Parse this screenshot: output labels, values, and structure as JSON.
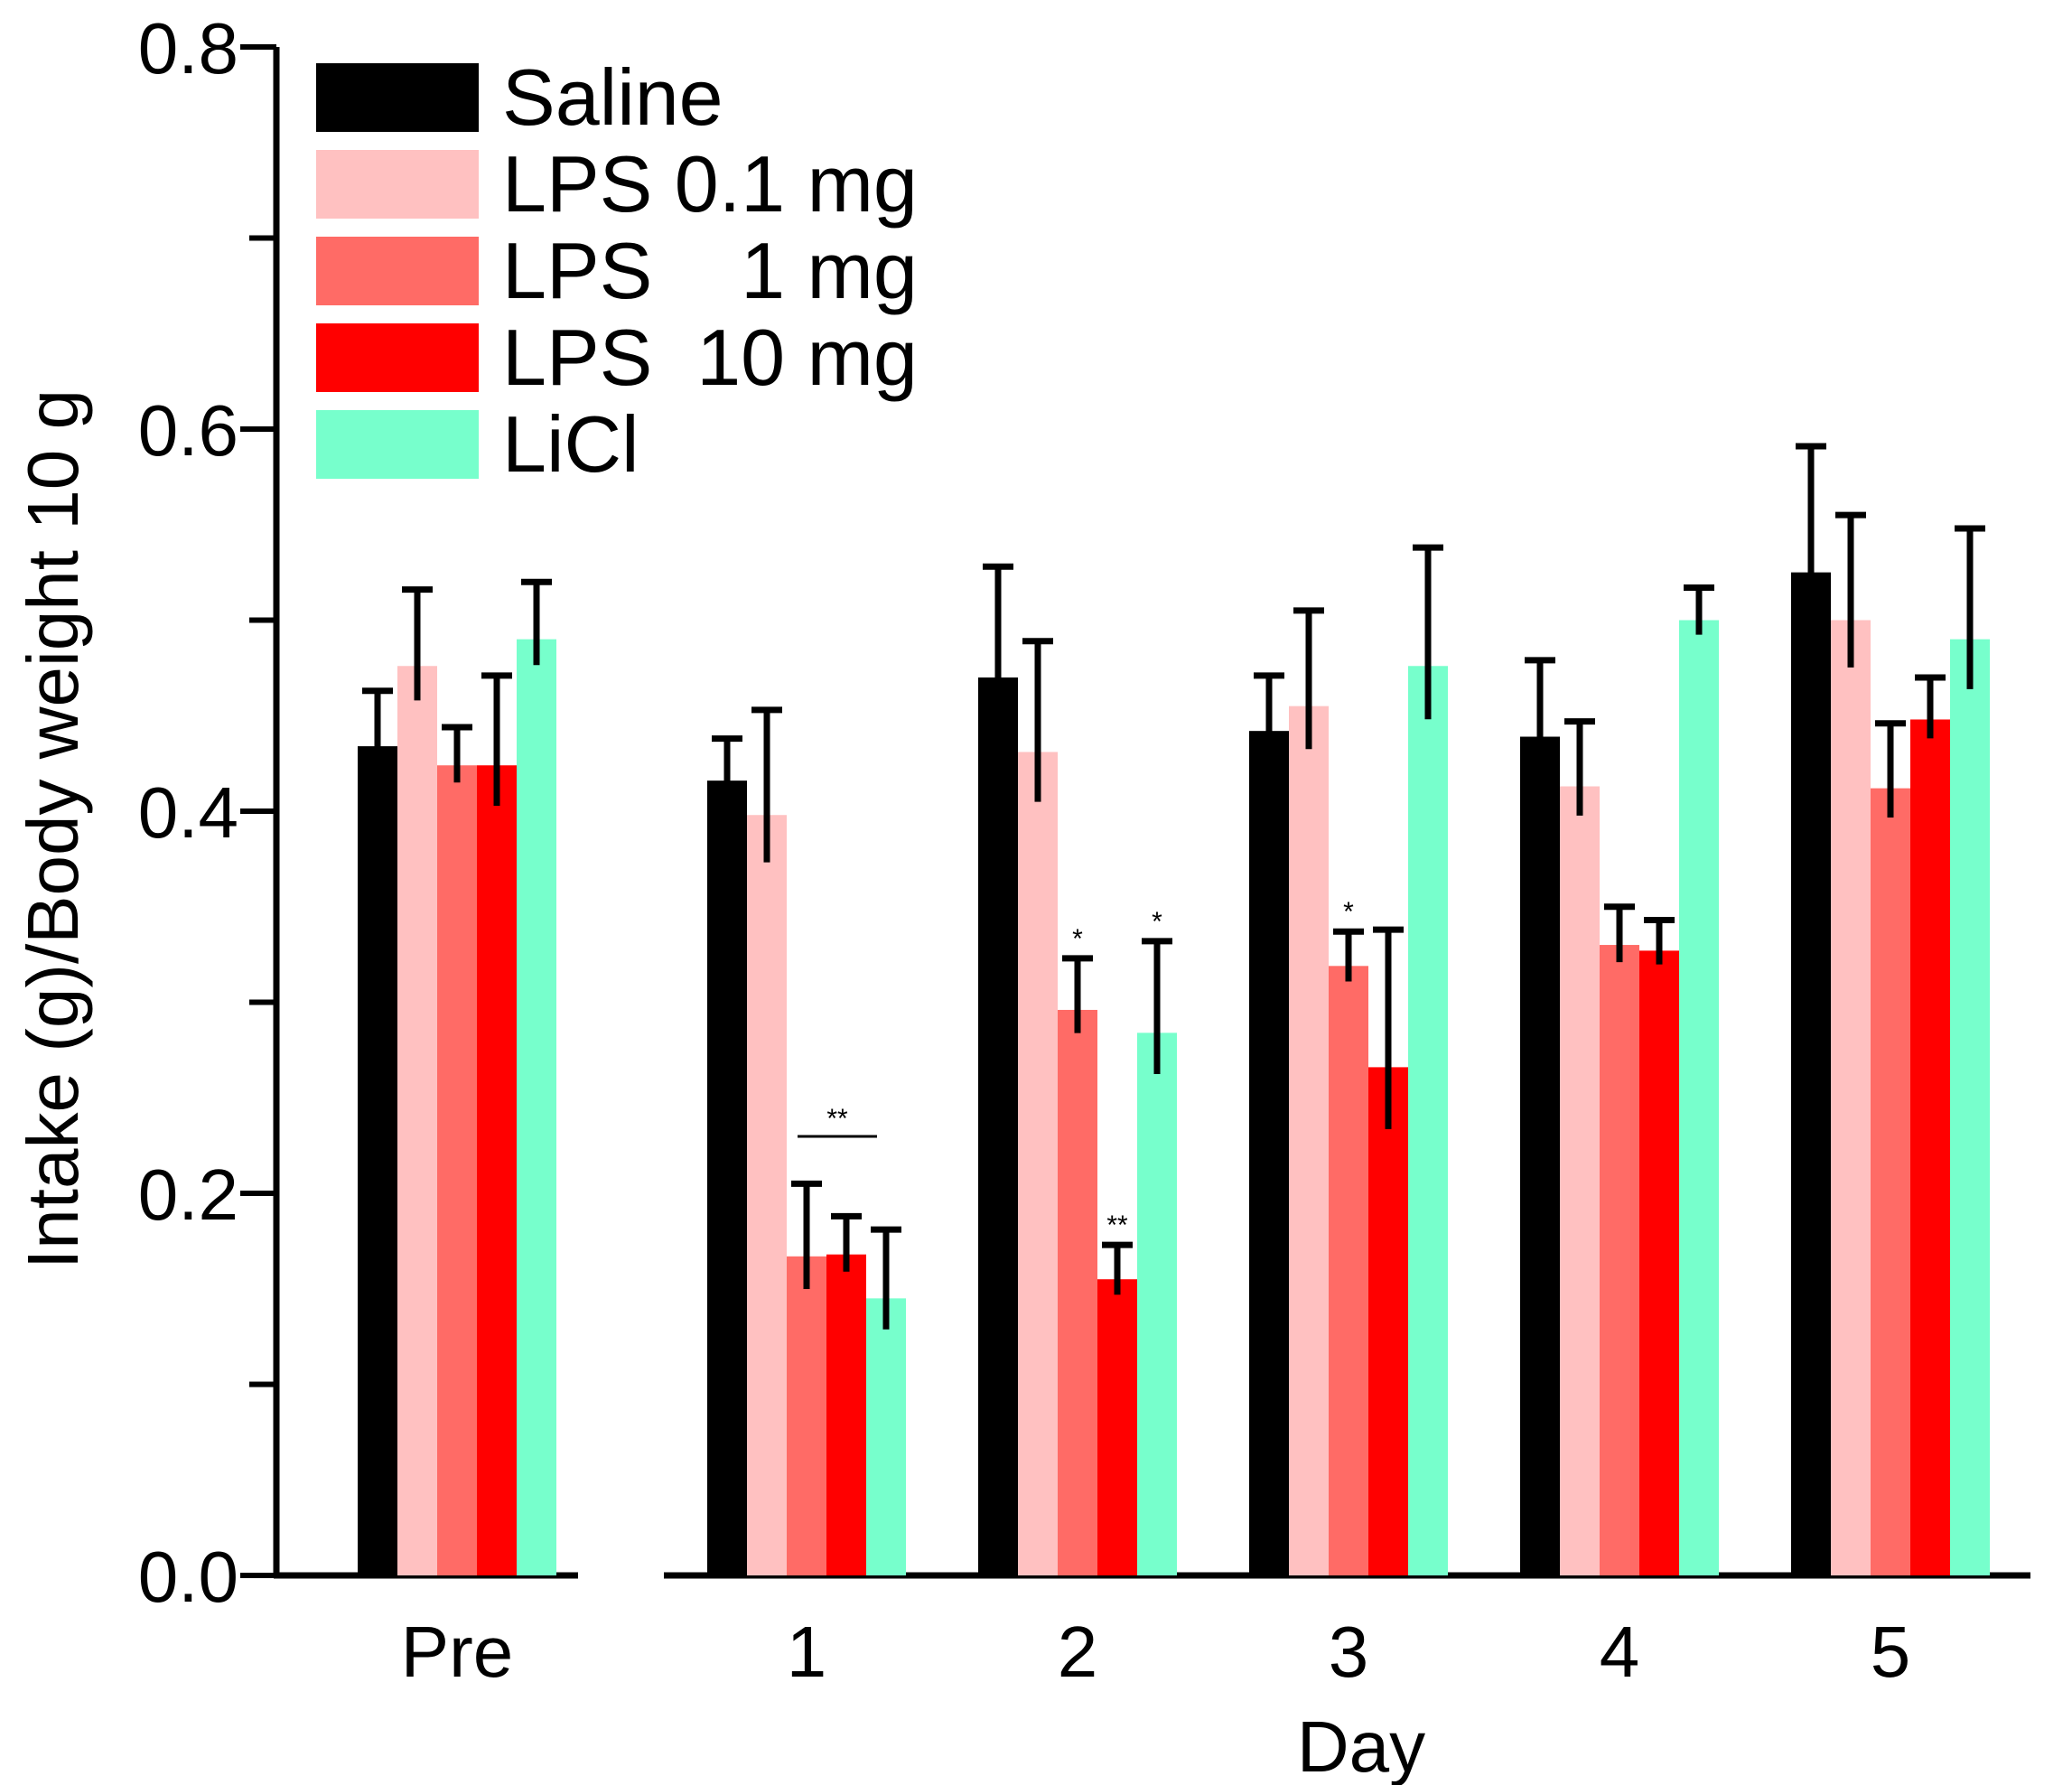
{
  "chart_data": {
    "type": "bar",
    "title": "",
    "xlabel": "Day",
    "ylabel": "Intake (g)/Body weight 10 g",
    "ylim": [
      0,
      0.8
    ],
    "yticks": [
      "0.0",
      "0.2",
      "0.4",
      "0.6",
      "0.8"
    ],
    "categories": [
      "Pre",
      "1",
      "2",
      "3",
      "4",
      "5"
    ],
    "series": [
      {
        "name": "Saline",
        "color": "#000000",
        "values": [
          0.434,
          0.416,
          0.47,
          0.442,
          0.439,
          0.525
        ],
        "errors": [
          0.029,
          0.022,
          0.058,
          0.029,
          0.04,
          0.066
        ]
      },
      {
        "name": "LPS 0.1 mg",
        "color": "#ffc1c1",
        "values": [
          0.476,
          0.398,
          0.431,
          0.455,
          0.413,
          0.5
        ],
        "errors": [
          0.04,
          0.055,
          0.058,
          0.05,
          0.034,
          0.055
        ]
      },
      {
        "name": "LPS    1 mg",
        "color": "#ff6b66",
        "values": [
          0.424,
          0.167,
          0.296,
          0.319,
          0.33,
          0.412
        ],
        "errors": [
          0.02,
          0.038,
          0.027,
          0.018,
          0.02,
          0.034
        ]
      },
      {
        "name": "LPS  10 mg",
        "color": "#ff0000",
        "values": [
          0.424,
          0.168,
          0.155,
          0.266,
          0.327,
          0.448
        ],
        "errors": [
          0.047,
          0.02,
          0.018,
          0.072,
          0.016,
          0.022
        ]
      },
      {
        "name": "LiCl",
        "color": "#77ffcc",
        "values": [
          0.49,
          0.145,
          0.284,
          0.476,
          0.5,
          0.49
        ],
        "errors": [
          0.03,
          0.036,
          0.048,
          0.062,
          0.017,
          0.058
        ]
      }
    ],
    "annotations": [
      {
        "text": "**",
        "category": "1",
        "note": "bracket over LPS 1, LPS 10, LiCl"
      },
      {
        "text": "*",
        "category": "2",
        "series": "LPS    1 mg"
      },
      {
        "text": "**",
        "category": "2",
        "series": "LPS  10 mg"
      },
      {
        "text": "*",
        "category": "2",
        "series": "LiCl"
      },
      {
        "text": "*",
        "category": "3",
        "series": "LPS    1 mg"
      }
    ]
  }
}
